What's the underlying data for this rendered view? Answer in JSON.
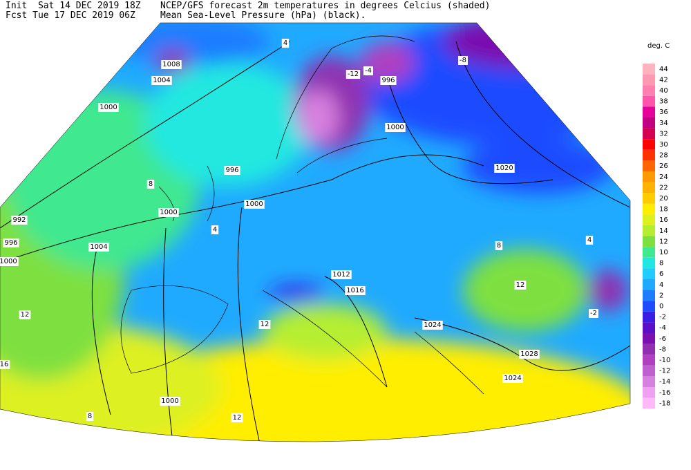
{
  "header": {
    "init": "Init  Sat 14 DEC 2019 18Z",
    "fcst": "Fcst Tue 17 DEC 2019 06Z",
    "title": "NCEP/GFS forecast 2m temperatures in degrees Celcius (shaded)",
    "subtitle": "Mean Sea-Level Pressure (hPa) (black)."
  },
  "colorbar": {
    "unit": "deg. C",
    "levels": [
      {
        "value": 44,
        "color": "#ffb3bf"
      },
      {
        "value": 42,
        "color": "#ff99b3"
      },
      {
        "value": 40,
        "color": "#ff80b0"
      },
      {
        "value": 38,
        "color": "#ff55aa"
      },
      {
        "value": 36,
        "color": "#e6009c"
      },
      {
        "value": 34,
        "color": "#c00080"
      },
      {
        "value": 32,
        "color": "#d40050"
      },
      {
        "value": 30,
        "color": "#ff0000"
      },
      {
        "value": 28,
        "color": "#ff3300"
      },
      {
        "value": 26,
        "color": "#ff6600"
      },
      {
        "value": 24,
        "color": "#ff9900"
      },
      {
        "value": 22,
        "color": "#ffb300"
      },
      {
        "value": 20,
        "color": "#ffcc00"
      },
      {
        "value": 18,
        "color": "#ffee00"
      },
      {
        "value": 16,
        "color": "#ddf020"
      },
      {
        "value": 14,
        "color": "#b5ee30"
      },
      {
        "value": 12,
        "color": "#7ee040"
      },
      {
        "value": 10,
        "color": "#40e890"
      },
      {
        "value": 8,
        "color": "#20e8e0"
      },
      {
        "value": 6,
        "color": "#20ccff"
      },
      {
        "value": 4,
        "color": "#20aaff"
      },
      {
        "value": 2,
        "color": "#1e7dff"
      },
      {
        "value": 0,
        "color": "#1e4bff"
      },
      {
        "value": -2,
        "color": "#3a1ee6"
      },
      {
        "value": -4,
        "color": "#5a10c8"
      },
      {
        "value": -6,
        "color": "#7a10b0"
      },
      {
        "value": -8,
        "color": "#9030b0"
      },
      {
        "value": -10,
        "color": "#b040c0"
      },
      {
        "value": -12,
        "color": "#c060d0"
      },
      {
        "value": -14,
        "color": "#d880e0"
      },
      {
        "value": -16,
        "color": "#f0a0f0"
      },
      {
        "value": -18,
        "color": "#ffb8f8"
      }
    ]
  },
  "pressure_labels": [
    "1008",
    "1004",
    "1000",
    "996",
    "1000",
    "1000",
    "992",
    "996",
    "1000",
    "1004",
    "1012",
    "1016",
    "1024",
    "1028",
    "1024",
    "1000",
    "996",
    "1000",
    "1020"
  ],
  "temperature_labels": [
    "4",
    "-12",
    "-4",
    "-8",
    "8",
    "4",
    "8",
    "12",
    "12",
    "16",
    "12",
    "8",
    "12",
    "-2",
    "4"
  ]
}
